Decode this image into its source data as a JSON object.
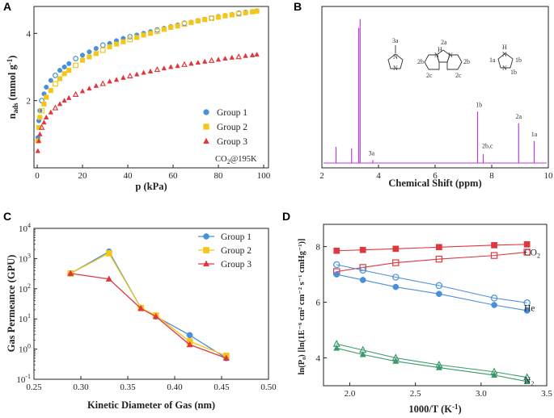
{
  "chart_data": [
    {
      "panel": "A",
      "type": "scatter",
      "xlabel": "p (kPa)",
      "ylabel_main": "n",
      "ylabel_sub": "ads",
      "ylabel_unit_pre": " (mmol g",
      "ylabel_unit_sup": "-1",
      "ylabel_unit_post": ")",
      "xlim": [
        0,
        100
      ],
      "ylim": [
        0,
        4.8
      ],
      "xticks": [
        0,
        20,
        40,
        60,
        80,
        100
      ],
      "yticks": [
        2,
        4
      ],
      "note_pre": "CO",
      "note_sub": "2",
      "note_post": "@195K",
      "legend_position": "right",
      "series": [
        {
          "name": "Group 1",
          "color": "#4a90d9",
          "marker": "circle",
          "x": [
            0.3,
            0.7,
            1.2,
            2,
            3,
            4,
            6,
            8,
            10,
            12,
            14,
            17,
            20,
            23,
            26,
            29,
            32,
            35,
            38,
            41,
            44,
            47,
            50,
            53,
            56,
            59,
            62,
            65,
            68,
            71,
            74,
            77,
            80,
            83,
            86,
            89,
            92,
            95,
            97
          ],
          "y": [
            0.9,
            1.4,
            1.7,
            2.0,
            2.2,
            2.4,
            2.6,
            2.75,
            2.9,
            3.0,
            3.1,
            3.25,
            3.35,
            3.45,
            3.55,
            3.65,
            3.7,
            3.78,
            3.85,
            3.9,
            3.95,
            4.0,
            4.05,
            4.1,
            4.15,
            4.2,
            4.25,
            4.3,
            4.33,
            4.38,
            4.42,
            4.45,
            4.5,
            4.53,
            4.56,
            4.6,
            4.63,
            4.65,
            4.67
          ]
        },
        {
          "name": "Group 2",
          "color": "#f5c518",
          "marker": "square",
          "x": [
            0.3,
            0.7,
            1.2,
            2,
            3,
            4,
            6,
            8,
            10,
            12,
            14,
            17,
            20,
            23,
            26,
            29,
            32,
            35,
            38,
            41,
            44,
            47,
            50,
            53,
            56,
            59,
            62,
            65,
            68,
            71,
            74,
            77,
            80,
            83,
            86,
            89,
            92,
            95,
            97
          ],
          "y": [
            0.8,
            1.2,
            1.5,
            1.7,
            1.9,
            2.1,
            2.3,
            2.5,
            2.65,
            2.8,
            2.9,
            3.05,
            3.2,
            3.3,
            3.4,
            3.5,
            3.6,
            3.68,
            3.75,
            3.82,
            3.88,
            3.95,
            4.0,
            4.06,
            4.12,
            4.18,
            4.22,
            4.28,
            4.32,
            4.37,
            4.41,
            4.45,
            4.48,
            4.52,
            4.55,
            4.58,
            4.61,
            4.64,
            4.66
          ]
        },
        {
          "name": "Group 3",
          "color": "#e0373f",
          "marker": "triangle",
          "x": [
            0.3,
            0.7,
            1.2,
            2,
            3,
            4,
            6,
            8,
            10,
            12,
            14,
            17,
            20,
            23,
            26,
            29,
            32,
            35,
            38,
            41,
            44,
            47,
            50,
            53,
            56,
            59,
            62,
            65,
            68,
            71,
            74,
            77,
            80,
            83,
            86,
            89,
            92,
            95,
            97
          ],
          "y": [
            0.5,
            0.8,
            1.0,
            1.2,
            1.35,
            1.5,
            1.65,
            1.78,
            1.9,
            2.0,
            2.08,
            2.18,
            2.28,
            2.36,
            2.44,
            2.5,
            2.57,
            2.62,
            2.68,
            2.73,
            2.78,
            2.83,
            2.87,
            2.92,
            2.96,
            3.0,
            3.03,
            3.07,
            3.1,
            3.13,
            3.16,
            3.19,
            3.22,
            3.25,
            3.28,
            3.3,
            3.33,
            3.35,
            3.37
          ]
        }
      ]
    },
    {
      "panel": "B",
      "type": "line",
      "xlabel": "Chemical Shift (ppm)",
      "xlim": [
        2,
        10
      ],
      "xticks": [
        2,
        4,
        6,
        8,
        10
      ],
      "color": "#b33fd6",
      "peaks": [
        {
          "ppm": 2.5,
          "height": 0.11
        },
        {
          "ppm": 3.05,
          "height": 0.1
        },
        {
          "ppm": 3.3,
          "height": 0.92
        },
        {
          "ppm": 3.35,
          "height": 0.98
        },
        {
          "ppm": 3.8,
          "height": 0.02
        },
        {
          "ppm": 7.5,
          "height": 0.35
        },
        {
          "ppm": 7.7,
          "height": 0.06
        },
        {
          "ppm": 8.95,
          "height": 0.27
        },
        {
          "ppm": 9.5,
          "height": 0.15
        }
      ],
      "peak_labels": [
        {
          "text": "3a",
          "ppm": 3.75,
          "height": 0.04
        },
        {
          "text": "1b",
          "ppm": 7.55,
          "height": 0.37
        },
        {
          "text": "2b,c",
          "ppm": 7.85,
          "height": 0.09
        },
        {
          "text": "2a",
          "ppm": 8.95,
          "height": 0.29
        },
        {
          "text": "1a",
          "ppm": 9.5,
          "height": 0.17
        }
      ],
      "structure_labels": {
        "s1": [
          "3a"
        ],
        "s2": [
          "2a",
          "2b",
          "2b",
          "2c",
          "2c",
          "H",
          "N",
          "N"
        ],
        "s3": [
          "1a",
          "1b",
          "1b",
          "H",
          "N",
          "N"
        ],
        "s1_atoms": [
          "N",
          "N"
        ]
      }
    },
    {
      "panel": "C",
      "type": "line",
      "xlabel": "Kinetic Diameter of Gas (nm)",
      "ylabel": "Gas Permeance (GPU)",
      "yscale": "log",
      "xlim": [
        0.25,
        0.5
      ],
      "ylim_exp": [
        -1,
        4
      ],
      "xticks": [
        "0.25",
        "0.30",
        "0.35",
        "0.40",
        "0.45",
        "0.50"
      ],
      "yticks_exp": [
        "-1",
        "0",
        "1",
        "2",
        "3",
        "4"
      ],
      "legend_position": "top-right",
      "x": [
        0.289,
        0.33,
        0.364,
        0.38,
        0.416,
        0.455
      ],
      "series": [
        {
          "name": "Group 1",
          "color": "#4a90d9",
          "marker": "circle",
          "values": [
            320,
            1700,
            23,
            12,
            2.9,
            0.5
          ]
        },
        {
          "name": "Group 2",
          "color": "#f5c518",
          "marker": "square",
          "values": [
            320,
            1500,
            23,
            13,
            1.8,
            0.6
          ]
        },
        {
          "name": "Group 3",
          "color": "#e0373f",
          "marker": "triangle",
          "values": [
            320,
            210,
            22,
            12,
            1.4,
            0.5
          ]
        }
      ]
    },
    {
      "panel": "D",
      "type": "line",
      "xlabel": "1000/T (K",
      "xlabel_sup": "-1",
      "xlabel_post": ")",
      "ylabel": "ln(P₀) [ln(1E⁻⁶ cm² cm⁻² s⁻¹ cmHg⁻¹)]",
      "xlim": [
        1.8,
        3.5
      ],
      "ylim": [
        3,
        8.8
      ],
      "xticks": [
        "2.0",
        "2.5",
        "3.0",
        "3.5"
      ],
      "yticks": [
        "4",
        "6",
        "8"
      ],
      "x": [
        1.9,
        2.1,
        2.35,
        2.68,
        3.1,
        3.35
      ],
      "gas_labels": [
        {
          "pre": "CO",
          "sub": "2",
          "y": 7.8
        },
        {
          "pre": "He",
          "sub": "",
          "y": 5.8
        },
        {
          "pre": "N",
          "sub": "2",
          "y": 3.2
        }
      ],
      "series": [
        {
          "group": "CO2",
          "color": "#e0373f",
          "marker": "square-filled",
          "values": [
            7.85,
            7.88,
            7.92,
            7.98,
            8.05,
            8.08
          ]
        },
        {
          "group": "CO2",
          "color": "#e0373f",
          "marker": "square-open",
          "values": [
            7.1,
            7.25,
            7.42,
            7.55,
            7.68,
            7.8
          ]
        },
        {
          "group": "He",
          "color": "#4a90d9",
          "marker": "circle-open",
          "values": [
            7.35,
            7.15,
            6.9,
            6.6,
            6.15,
            5.98
          ]
        },
        {
          "group": "He",
          "color": "#4a90d9",
          "marker": "circle-filled",
          "values": [
            7.0,
            6.8,
            6.55,
            6.3,
            5.9,
            5.7
          ]
        },
        {
          "group": "N2",
          "color": "#3a9a6a",
          "marker": "triangle-open",
          "values": [
            4.5,
            4.28,
            4.0,
            3.75,
            3.5,
            3.3
          ]
        },
        {
          "group": "N2",
          "color": "#3a9a6a",
          "marker": "triangle-filled",
          "values": [
            4.35,
            4.12,
            3.88,
            3.65,
            3.38,
            3.15
          ]
        }
      ]
    }
  ]
}
